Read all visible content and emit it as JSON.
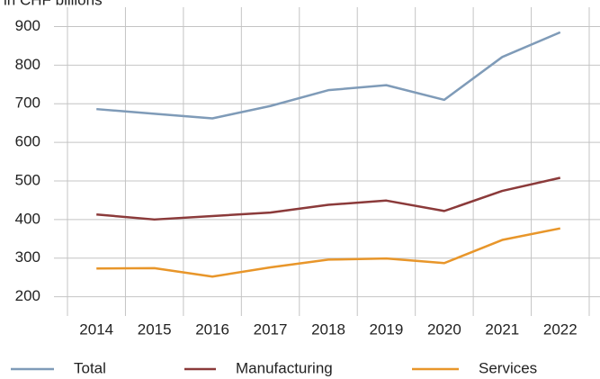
{
  "chart_data": {
    "type": "line",
    "subtitle": "in CHF billions",
    "categories": [
      "2014",
      "2015",
      "2016",
      "2017",
      "2018",
      "2019",
      "2020",
      "2021",
      "2022"
    ],
    "series": [
      {
        "name": "Total",
        "color": "#7f9bb8",
        "values": [
          686,
          674,
          662,
          694,
          735,
          748,
          710,
          821,
          885
        ]
      },
      {
        "name": "Manufacturing",
        "color": "#8b3a3a",
        "values": [
          413,
          400,
          409,
          418,
          438,
          449,
          422,
          474,
          508
        ]
      },
      {
        "name": "Services",
        "color": "#e8962a",
        "values": [
          273,
          274,
          252,
          276,
          296,
          299,
          287,
          347,
          377
        ]
      }
    ],
    "ylim": [
      150,
      950
    ],
    "yticks": [
      200,
      300,
      400,
      500,
      600,
      700,
      800,
      900
    ],
    "grid": true
  }
}
